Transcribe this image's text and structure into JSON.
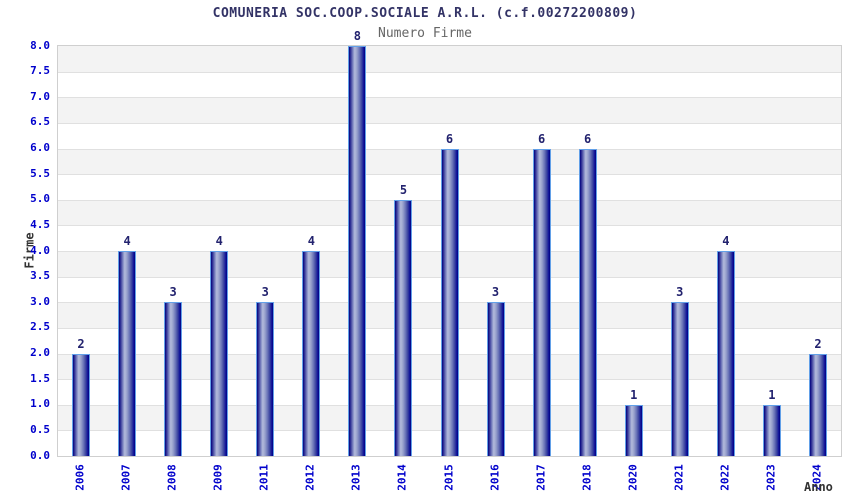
{
  "chart_data": {
    "type": "bar",
    "title": "COMUNERIA SOC.COOP.SOCIALE A.R.L. (c.f.00272200809)",
    "subtitle": "Numero Firme",
    "xlabel": "Anno",
    "ylabel": "Firme",
    "categories": [
      "2006",
      "2007",
      "2008",
      "2009",
      "2011",
      "2012",
      "2013",
      "2014",
      "2015",
      "2016",
      "2017",
      "2018",
      "2020",
      "2021",
      "2022",
      "2023",
      "2024"
    ],
    "values": [
      2,
      4,
      3,
      4,
      3,
      4,
      8,
      5,
      6,
      3,
      6,
      6,
      1,
      3,
      4,
      1,
      2
    ],
    "ylim": [
      0,
      8
    ],
    "ytick_step": 0.5,
    "ytick_labels": [
      "0.0",
      "0.5",
      "1.0",
      "1.5",
      "2.0",
      "2.5",
      "3.0",
      "3.5",
      "4.0",
      "4.5",
      "5.0",
      "5.5",
      "6.0",
      "6.5",
      "7.0",
      "7.5",
      "8.0"
    ],
    "grid": true,
    "legend": "none",
    "colors": {
      "title": "#333366",
      "subtitle": "#666666",
      "tick_label": "#0000cc",
      "value_label": "#22226e",
      "axis_label": "#333333",
      "band_gray": "#f3f3f3",
      "band_white": "#ffffff",
      "gridline": "#e0e0e0",
      "plot_border": "#cfcfcf",
      "bar_dark": "#000080",
      "bar_light": "#b3badb",
      "bar_outline": "#62a0e8"
    }
  }
}
